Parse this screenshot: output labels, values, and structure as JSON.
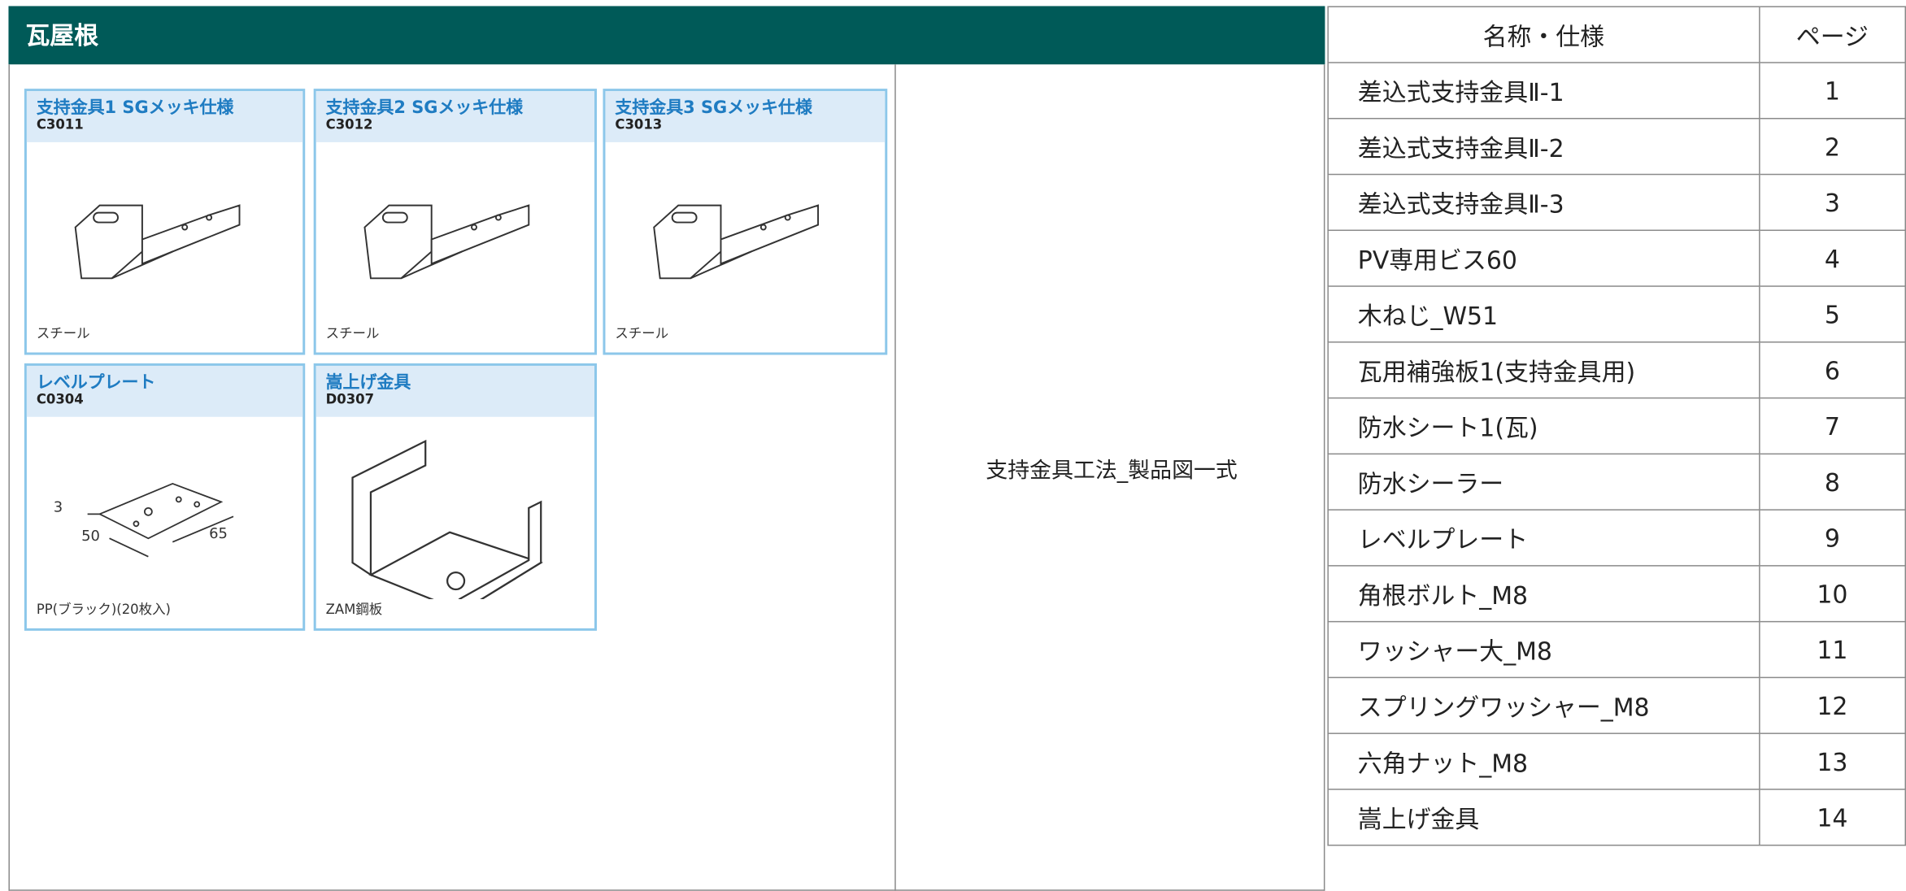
{
  "header": {
    "title": "瓦屋根"
  },
  "center_label": "支持金具工法_製品図一式",
  "cards": [
    {
      "title": "支持金具1 SGメッキ仕様",
      "code": "C3011",
      "material": "スチール"
    },
    {
      "title": "支持金具2  SGメッキ仕様",
      "code": "C3012",
      "material": "スチール"
    },
    {
      "title": "支持金具3  SGメッキ仕様",
      "code": "C3013",
      "material": "スチール"
    },
    {
      "title": "レベルプレート",
      "code": "C0304",
      "material": "PP(ブラック)(20枚入)",
      "dims": [
        "3",
        "50",
        "65"
      ]
    },
    {
      "title": "嵩上げ金具",
      "code": "D0307",
      "material": "ZAM鋼板"
    }
  ],
  "table": {
    "columns": [
      "名称・仕様",
      "ページ"
    ],
    "rows": [
      [
        "差込式支持金具Ⅱ-1",
        1
      ],
      [
        "差込式支持金具Ⅱ-2",
        2
      ],
      [
        "差込式支持金具Ⅱ-3",
        3
      ],
      [
        "PV専用ビス60",
        4
      ],
      [
        "木ねじ_W51",
        5
      ],
      [
        "瓦用補強板1(支持金具用)",
        6
      ],
      [
        "防水シート1(瓦)",
        7
      ],
      [
        "防水シーラー",
        8
      ],
      [
        "レベルプレート",
        9
      ],
      [
        "角根ボルト_M8",
        10
      ],
      [
        "ワッシャー大_M8",
        11
      ],
      [
        "スプリングワッシャー_M8",
        12
      ],
      [
        "六角ナット_M8",
        13
      ],
      [
        "嵩上げ金具",
        14
      ]
    ]
  }
}
